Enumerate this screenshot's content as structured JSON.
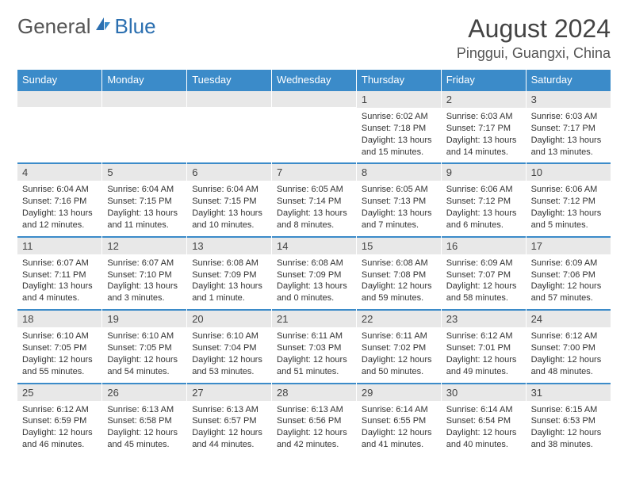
{
  "logo": {
    "text1": "General",
    "text2": "Blue",
    "color1": "#666666",
    "color2": "#2b6fb0"
  },
  "title": "August 2024",
  "location": "Pinggui, Guangxi, China",
  "columns": [
    "Sunday",
    "Monday",
    "Tuesday",
    "Wednesday",
    "Thursday",
    "Friday",
    "Saturday"
  ],
  "colors": {
    "header_bg": "#3b8bc9",
    "header_text": "#ffffff",
    "daynum_bg": "#e8e8e8",
    "divider": "#3b8bc9"
  },
  "weeks": [
    [
      null,
      null,
      null,
      null,
      {
        "n": "1",
        "sr": "6:02 AM",
        "ss": "7:18 PM",
        "dl": "13 hours and 15 minutes."
      },
      {
        "n": "2",
        "sr": "6:03 AM",
        "ss": "7:17 PM",
        "dl": "13 hours and 14 minutes."
      },
      {
        "n": "3",
        "sr": "6:03 AM",
        "ss": "7:17 PM",
        "dl": "13 hours and 13 minutes."
      }
    ],
    [
      {
        "n": "4",
        "sr": "6:04 AM",
        "ss": "7:16 PM",
        "dl": "13 hours and 12 minutes."
      },
      {
        "n": "5",
        "sr": "6:04 AM",
        "ss": "7:15 PM",
        "dl": "13 hours and 11 minutes."
      },
      {
        "n": "6",
        "sr": "6:04 AM",
        "ss": "7:15 PM",
        "dl": "13 hours and 10 minutes."
      },
      {
        "n": "7",
        "sr": "6:05 AM",
        "ss": "7:14 PM",
        "dl": "13 hours and 8 minutes."
      },
      {
        "n": "8",
        "sr": "6:05 AM",
        "ss": "7:13 PM",
        "dl": "13 hours and 7 minutes."
      },
      {
        "n": "9",
        "sr": "6:06 AM",
        "ss": "7:12 PM",
        "dl": "13 hours and 6 minutes."
      },
      {
        "n": "10",
        "sr": "6:06 AM",
        "ss": "7:12 PM",
        "dl": "13 hours and 5 minutes."
      }
    ],
    [
      {
        "n": "11",
        "sr": "6:07 AM",
        "ss": "7:11 PM",
        "dl": "13 hours and 4 minutes."
      },
      {
        "n": "12",
        "sr": "6:07 AM",
        "ss": "7:10 PM",
        "dl": "13 hours and 3 minutes."
      },
      {
        "n": "13",
        "sr": "6:08 AM",
        "ss": "7:09 PM",
        "dl": "13 hours and 1 minute."
      },
      {
        "n": "14",
        "sr": "6:08 AM",
        "ss": "7:09 PM",
        "dl": "13 hours and 0 minutes."
      },
      {
        "n": "15",
        "sr": "6:08 AM",
        "ss": "7:08 PM",
        "dl": "12 hours and 59 minutes."
      },
      {
        "n": "16",
        "sr": "6:09 AM",
        "ss": "7:07 PM",
        "dl": "12 hours and 58 minutes."
      },
      {
        "n": "17",
        "sr": "6:09 AM",
        "ss": "7:06 PM",
        "dl": "12 hours and 57 minutes."
      }
    ],
    [
      {
        "n": "18",
        "sr": "6:10 AM",
        "ss": "7:05 PM",
        "dl": "12 hours and 55 minutes."
      },
      {
        "n": "19",
        "sr": "6:10 AM",
        "ss": "7:05 PM",
        "dl": "12 hours and 54 minutes."
      },
      {
        "n": "20",
        "sr": "6:10 AM",
        "ss": "7:04 PM",
        "dl": "12 hours and 53 minutes."
      },
      {
        "n": "21",
        "sr": "6:11 AM",
        "ss": "7:03 PM",
        "dl": "12 hours and 51 minutes."
      },
      {
        "n": "22",
        "sr": "6:11 AM",
        "ss": "7:02 PM",
        "dl": "12 hours and 50 minutes."
      },
      {
        "n": "23",
        "sr": "6:12 AM",
        "ss": "7:01 PM",
        "dl": "12 hours and 49 minutes."
      },
      {
        "n": "24",
        "sr": "6:12 AM",
        "ss": "7:00 PM",
        "dl": "12 hours and 48 minutes."
      }
    ],
    [
      {
        "n": "25",
        "sr": "6:12 AM",
        "ss": "6:59 PM",
        "dl": "12 hours and 46 minutes."
      },
      {
        "n": "26",
        "sr": "6:13 AM",
        "ss": "6:58 PM",
        "dl": "12 hours and 45 minutes."
      },
      {
        "n": "27",
        "sr": "6:13 AM",
        "ss": "6:57 PM",
        "dl": "12 hours and 44 minutes."
      },
      {
        "n": "28",
        "sr": "6:13 AM",
        "ss": "6:56 PM",
        "dl": "12 hours and 42 minutes."
      },
      {
        "n": "29",
        "sr": "6:14 AM",
        "ss": "6:55 PM",
        "dl": "12 hours and 41 minutes."
      },
      {
        "n": "30",
        "sr": "6:14 AM",
        "ss": "6:54 PM",
        "dl": "12 hours and 40 minutes."
      },
      {
        "n": "31",
        "sr": "6:15 AM",
        "ss": "6:53 PM",
        "dl": "12 hours and 38 minutes."
      }
    ]
  ],
  "labels": {
    "sunrise": "Sunrise:",
    "sunset": "Sunset:",
    "daylight": "Daylight:"
  }
}
